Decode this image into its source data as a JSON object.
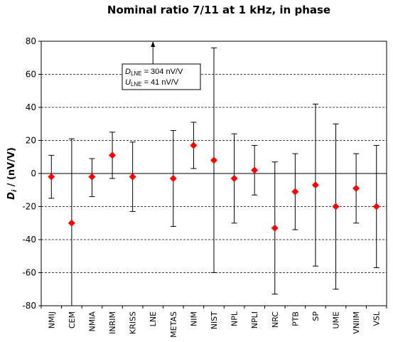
{
  "chart_data": {
    "type": "scatter",
    "title": "Nominal ratio 7/11 at 1 kHz, in phase",
    "ylabel": {
      "main": "D",
      "sub": "i",
      "rest": " / (nV/V)"
    },
    "ylim": [
      -80,
      80
    ],
    "yticks": [
      80,
      60,
      40,
      20,
      0,
      -20,
      -40,
      -60,
      -80
    ],
    "grid": "horizontal-dashed",
    "marker_color": "#ff0000",
    "categories": [
      "NMIJ",
      "CEM",
      "NMIA",
      "INRIM",
      "KRISS",
      "LNE",
      "METAS",
      "NIM",
      "NIST",
      "NPL",
      "NPLI",
      "NRC",
      "PTB",
      "SP",
      "UME",
      "VNIIM",
      "VSL"
    ],
    "values": [
      -2,
      -30,
      -2,
      11,
      -2,
      null,
      -3,
      17,
      8,
      -3,
      2,
      -33,
      -11,
      -7,
      -20,
      -9,
      -20
    ],
    "error_low": [
      -15,
      -80,
      -14,
      -3,
      -23,
      null,
      -32,
      3,
      -60,
      -30,
      -13,
      -73,
      -34,
      -56,
      -70,
      -30,
      -57
    ],
    "error_high": [
      11,
      21,
      9,
      25,
      19,
      null,
      26,
      31,
      76,
      24,
      17,
      7,
      12,
      42,
      30,
      12,
      17
    ],
    "annotation": {
      "line1": {
        "var": "D",
        "sub": "LNE",
        "text": " = 304 nV/V"
      },
      "line2": {
        "var": "U",
        "sub": "LNE",
        "text": " = 41 nV/V"
      },
      "arrow_category": "LNE"
    }
  }
}
